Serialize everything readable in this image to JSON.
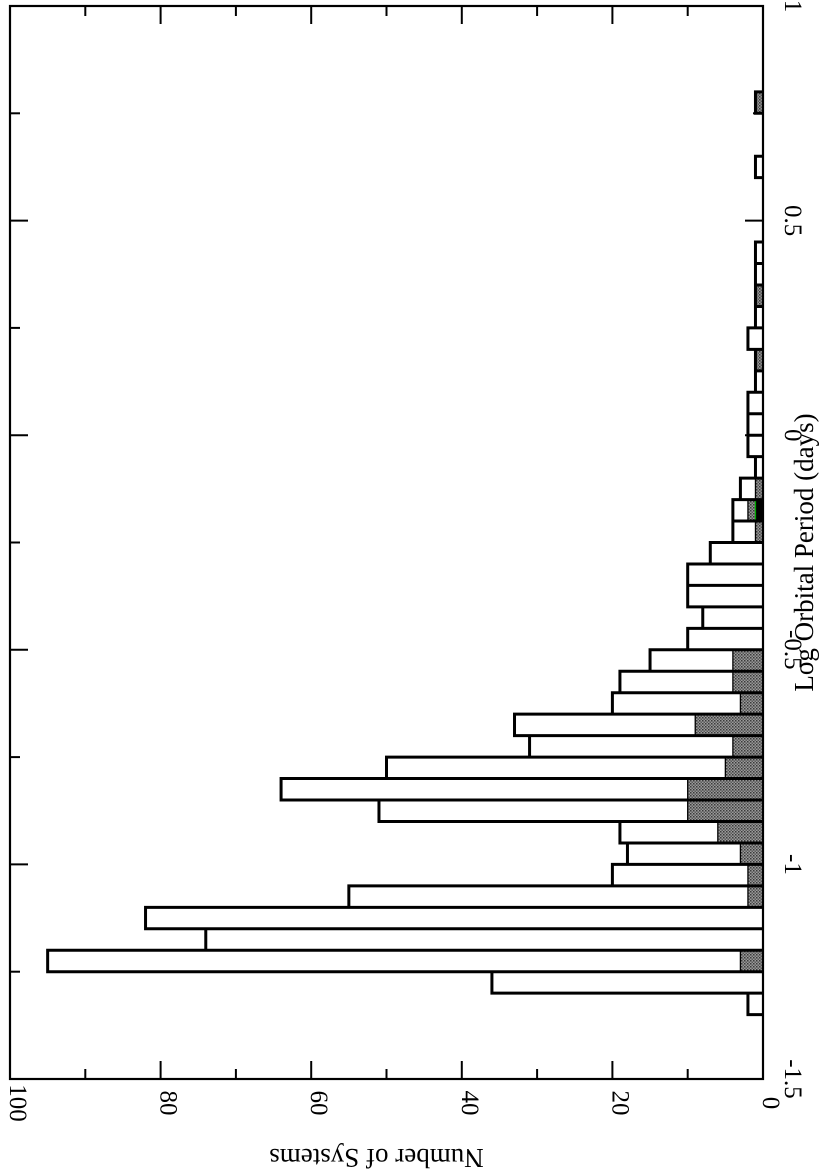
{
  "chart_data": {
    "type": "histogram",
    "orientation": "rotated-90",
    "xlabel": "Log Orbital Period (days)",
    "ylabel": "Number of Systems",
    "xlim": [
      -1.5,
      1
    ],
    "ylim": [
      0,
      100
    ],
    "bin_width": 0.05,
    "x_ticks": [
      -1.5,
      -1,
      -0.5,
      0,
      0.5,
      1
    ],
    "x_tick_labels": [
      "-1.5",
      "-1",
      "-0.5",
      "0",
      "0.5",
      "1"
    ],
    "x_minor_ticks": [
      -1.25,
      -0.75,
      -0.25,
      0.25,
      0.75
    ],
    "y_ticks": [
      0,
      20,
      40,
      60,
      80,
      100
    ],
    "y_tick_labels": [
      "0",
      "20",
      "40",
      "60",
      "80",
      "100"
    ],
    "y_minor_ticks": [
      10,
      30,
      50,
      70,
      90
    ],
    "series": [
      {
        "style": "outline",
        "color": "#000000",
        "bins": [
          {
            "x0": -1.35,
            "x1": -1.3,
            "value": 2
          },
          {
            "x0": -1.3,
            "x1": -1.25,
            "value": 36
          },
          {
            "x0": -1.25,
            "x1": -1.2,
            "value": 95
          },
          {
            "x0": -1.2,
            "x1": -1.15,
            "value": 74
          },
          {
            "x0": -1.15,
            "x1": -1.1,
            "value": 82
          },
          {
            "x0": -1.1,
            "x1": -1.05,
            "value": 55
          },
          {
            "x0": -1.05,
            "x1": -1.0,
            "value": 20
          },
          {
            "x0": -1.0,
            "x1": -0.95,
            "value": 18
          },
          {
            "x0": -0.95,
            "x1": -0.9,
            "value": 19
          },
          {
            "x0": -0.9,
            "x1": -0.85,
            "value": 51
          },
          {
            "x0": -0.85,
            "x1": -0.8,
            "value": 64
          },
          {
            "x0": -0.8,
            "x1": -0.75,
            "value": 50
          },
          {
            "x0": -0.75,
            "x1": -0.7,
            "value": 31
          },
          {
            "x0": -0.7,
            "x1": -0.65,
            "value": 33
          },
          {
            "x0": -0.65,
            "x1": -0.6,
            "value": 20
          },
          {
            "x0": -0.6,
            "x1": -0.55,
            "value": 19
          },
          {
            "x0": -0.55,
            "x1": -0.5,
            "value": 15
          },
          {
            "x0": -0.5,
            "x1": -0.45,
            "value": 10
          },
          {
            "x0": -0.45,
            "x1": -0.4,
            "value": 8
          },
          {
            "x0": -0.4,
            "x1": -0.35,
            "value": 10
          },
          {
            "x0": -0.35,
            "x1": -0.3,
            "value": 10
          },
          {
            "x0": -0.3,
            "x1": -0.25,
            "value": 7
          },
          {
            "x0": -0.25,
            "x1": -0.2,
            "value": 4
          },
          {
            "x0": -0.2,
            "x1": -0.15,
            "value": 4
          },
          {
            "x0": -0.15,
            "x1": -0.1,
            "value": 3
          },
          {
            "x0": -0.1,
            "x1": -0.05,
            "value": 1
          },
          {
            "x0": -0.05,
            "x1": 0.0,
            "value": 2
          },
          {
            "x0": 0.0,
            "x1": 0.05,
            "value": 2
          },
          {
            "x0": 0.05,
            "x1": 0.1,
            "value": 2
          },
          {
            "x0": 0.1,
            "x1": 0.15,
            "value": 1
          },
          {
            "x0": 0.15,
            "x1": 0.2,
            "value": 1
          },
          {
            "x0": 0.2,
            "x1": 0.25,
            "value": 2
          },
          {
            "x0": 0.25,
            "x1": 0.3,
            "value": 1
          },
          {
            "x0": 0.3,
            "x1": 0.35,
            "value": 1
          },
          {
            "x0": 0.35,
            "x1": 0.4,
            "value": 1
          },
          {
            "x0": 0.4,
            "x1": 0.45,
            "value": 1
          },
          {
            "x0": 0.45,
            "x1": 0.5,
            "value": 0
          },
          {
            "x0": 0.5,
            "x1": 0.55,
            "value": 0
          },
          {
            "x0": 0.55,
            "x1": 0.6,
            "value": 0
          },
          {
            "x0": 0.6,
            "x1": 0.65,
            "value": 1
          },
          {
            "x0": 0.65,
            "x1": 0.7,
            "value": 0
          },
          {
            "x0": 0.7,
            "x1": 0.75,
            "value": 0
          },
          {
            "x0": 0.75,
            "x1": 0.8,
            "value": 1
          }
        ]
      },
      {
        "style": "hatched-fill",
        "color": "#808080",
        "bins": [
          {
            "x0": -1.25,
            "x1": -1.2,
            "value": 3
          },
          {
            "x0": -1.1,
            "x1": -1.05,
            "value": 2
          },
          {
            "x0": -1.05,
            "x1": -1.0,
            "value": 2
          },
          {
            "x0": -1.0,
            "x1": -0.95,
            "value": 3
          },
          {
            "x0": -0.95,
            "x1": -0.9,
            "value": 6
          },
          {
            "x0": -0.9,
            "x1": -0.85,
            "value": 10
          },
          {
            "x0": -0.85,
            "x1": -0.8,
            "value": 10
          },
          {
            "x0": -0.8,
            "x1": -0.75,
            "value": 5
          },
          {
            "x0": -0.75,
            "x1": -0.7,
            "value": 4
          },
          {
            "x0": -0.7,
            "x1": -0.65,
            "value": 9
          },
          {
            "x0": -0.65,
            "x1": -0.6,
            "value": 3
          },
          {
            "x0": -0.6,
            "x1": -0.55,
            "value": 4
          },
          {
            "x0": -0.55,
            "x1": -0.5,
            "value": 4
          },
          {
            "x0": -0.25,
            "x1": -0.2,
            "value": 1
          },
          {
            "x0": -0.2,
            "x1": -0.15,
            "value": 2
          },
          {
            "x0": -0.15,
            "x1": -0.1,
            "value": 1
          },
          {
            "x0": 0.15,
            "x1": 0.2,
            "value": 1
          },
          {
            "x0": 0.3,
            "x1": 0.35,
            "value": 1
          },
          {
            "x0": 0.75,
            "x1": 0.8,
            "value": 1
          }
        ]
      },
      {
        "style": "solid-fill",
        "color": "#000000",
        "edge_color": "#00aa00",
        "bins": [
          {
            "x0": -0.2,
            "x1": -0.15,
            "value": 1
          }
        ]
      }
    ]
  }
}
